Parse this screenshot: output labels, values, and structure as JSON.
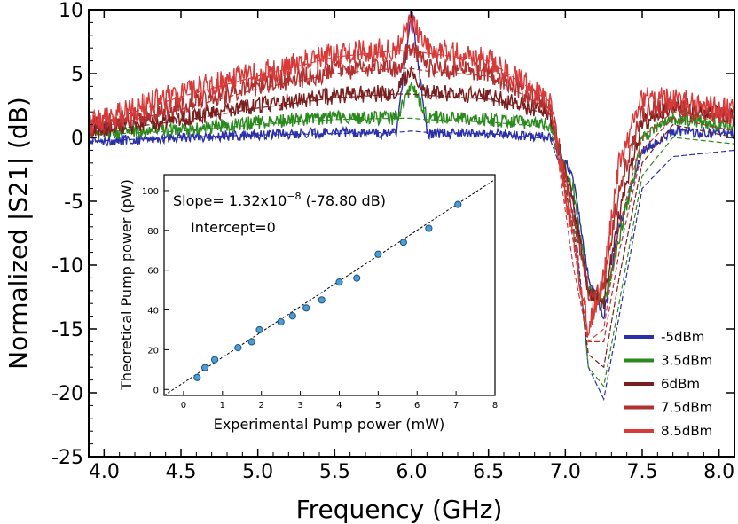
{
  "chart_data": [
    {
      "type": "line",
      "xlabel": "Frequency (GHz)",
      "ylabel": "Normalized |S21| (dB)",
      "xlim": [
        3.9,
        8.1
      ],
      "ylim": [
        -25,
        10
      ],
      "xticks": [
        "4.0",
        "4.5",
        "5.0",
        "5.5",
        "6.0",
        "6.5",
        "7.0",
        "7.5",
        "8.0"
      ],
      "yticks": [
        "10",
        "5",
        "0",
        "-5",
        "-10",
        "-15",
        "-20",
        "-25"
      ],
      "legend": "bottom-right",
      "line_styles": {
        "solid": "measured",
        "dashed": "simulated"
      },
      "series": [
        {
          "name": "-5dBm",
          "color": "#2b2fa8",
          "x": [
            3.9,
            4.5,
            5.0,
            5.5,
            5.9,
            6.0,
            6.1,
            6.5,
            6.9,
            7.05,
            7.15,
            7.25,
            7.35,
            7.5,
            7.7,
            8.1
          ],
          "y": [
            -0.3,
            0,
            0.2,
            0.4,
            0.3,
            10,
            0.3,
            0.3,
            0,
            -3,
            -11,
            -14,
            -7,
            -1,
            0.5,
            0.3
          ],
          "dashed_y": [
            -0.3,
            0,
            0.2,
            0.3,
            0.4,
            0.5,
            0.4,
            0.3,
            -0.1,
            -5,
            -18,
            -20.5,
            -14,
            -4,
            -1.5,
            -1
          ]
        },
        {
          "name": "3.5dBm",
          "color": "#2a8a1e",
          "x": [
            3.9,
            4.5,
            5.0,
            5.5,
            5.9,
            6.0,
            6.1,
            6.5,
            6.9,
            7.05,
            7.15,
            7.25,
            7.35,
            7.5,
            7.7,
            8.1
          ],
          "y": [
            0.3,
            0.6,
            1.2,
            1.6,
            1.5,
            4,
            1.6,
            1.4,
            1.0,
            -4,
            -12,
            -13,
            -8,
            0,
            1.5,
            1
          ],
          "dashed_y": [
            0.2,
            0.5,
            1.0,
            1.4,
            1.5,
            1.5,
            1.4,
            1.2,
            0.8,
            -6,
            -18,
            -19.5,
            -13,
            -3,
            0,
            -0.5
          ]
        },
        {
          "name": "6dBm",
          "color": "#7a1e1e",
          "x": [
            3.9,
            4.5,
            5.0,
            5.5,
            5.9,
            6.0,
            6.1,
            6.5,
            6.9,
            7.05,
            7.15,
            7.25,
            7.35,
            7.5,
            7.7,
            8.1
          ],
          "y": [
            0.5,
            1.5,
            2.5,
            3.3,
            3.5,
            5.5,
            3.5,
            3.2,
            2.0,
            -5,
            -12,
            -13,
            -6,
            1,
            2.5,
            1.5
          ],
          "dashed_y": [
            0.4,
            1.3,
            2.3,
            3.1,
            3.4,
            3.4,
            3.3,
            3.0,
            1.8,
            -7,
            -17,
            -18,
            -11,
            -2,
            1,
            0
          ]
        },
        {
          "name": "7.5dBm",
          "color": "#b23030",
          "x": [
            3.9,
            4.5,
            5.0,
            5.5,
            5.9,
            6.0,
            6.1,
            6.5,
            6.9,
            7.05,
            7.15,
            7.25,
            7.35,
            7.5,
            7.7,
            8.1
          ],
          "y": [
            0.8,
            2.5,
            4.0,
            5.2,
            5.5,
            7.0,
            5.5,
            5.0,
            2.5,
            -6,
            -12,
            -12,
            -4,
            2,
            2.5,
            1.5
          ],
          "dashed_y": [
            0.6,
            2.2,
            3.8,
            5.0,
            5.4,
            5.4,
            5.2,
            4.8,
            2.2,
            -8,
            -16,
            -16,
            -9,
            -1,
            1.5,
            0.5
          ]
        },
        {
          "name": "8.5dBm",
          "color": "#d83a3a",
          "x": [
            3.9,
            4.5,
            5.0,
            5.5,
            5.9,
            6.0,
            6.1,
            6.5,
            6.9,
            7.05,
            7.15,
            7.25,
            7.35,
            7.5,
            7.7,
            8.1
          ],
          "y": [
            1.0,
            3.5,
            5.0,
            6.5,
            7.0,
            9.0,
            7.0,
            6.0,
            3.0,
            -8,
            -15,
            -11,
            -2,
            3,
            3,
            2
          ],
          "dashed_y": [
            0.8,
            3.2,
            4.8,
            6.3,
            6.8,
            6.8,
            6.6,
            6.0,
            2.8,
            -10,
            -16,
            -15,
            -7,
            0,
            2,
            1
          ]
        }
      ]
    },
    {
      "type": "scatter",
      "xlabel": "Experimental Pump power (mW)",
      "ylabel": "Theoretical Pump power (pW)",
      "xlim": [
        -0.5,
        8
      ],
      "ylim": [
        -3,
        108
      ],
      "xticks": [
        "0",
        "1",
        "2",
        "3",
        "4",
        "5",
        "6",
        "7",
        "8"
      ],
      "yticks": [
        "0",
        "20",
        "40",
        "60",
        "80",
        "100"
      ],
      "annotations": {
        "slope": "Slope= 1.32x10",
        "exponent": "−8",
        "slope_db": " (-78.80 dB)",
        "intercept": "Intercept=0"
      },
      "fit": {
        "slope": 13.2,
        "intercept": 0,
        "style": "dashed",
        "x": [
          -0.5,
          8
        ]
      },
      "points": {
        "x": [
          0.35,
          0.55,
          0.8,
          1.4,
          1.75,
          1.95,
          2.5,
          2.8,
          3.15,
          3.55,
          4.0,
          4.45,
          5.0,
          5.65,
          6.3,
          7.05
        ],
        "y": [
          6,
          11,
          15,
          21,
          24,
          30,
          34,
          37,
          41,
          45,
          54,
          56,
          68,
          74,
          81,
          93
        ]
      }
    }
  ]
}
